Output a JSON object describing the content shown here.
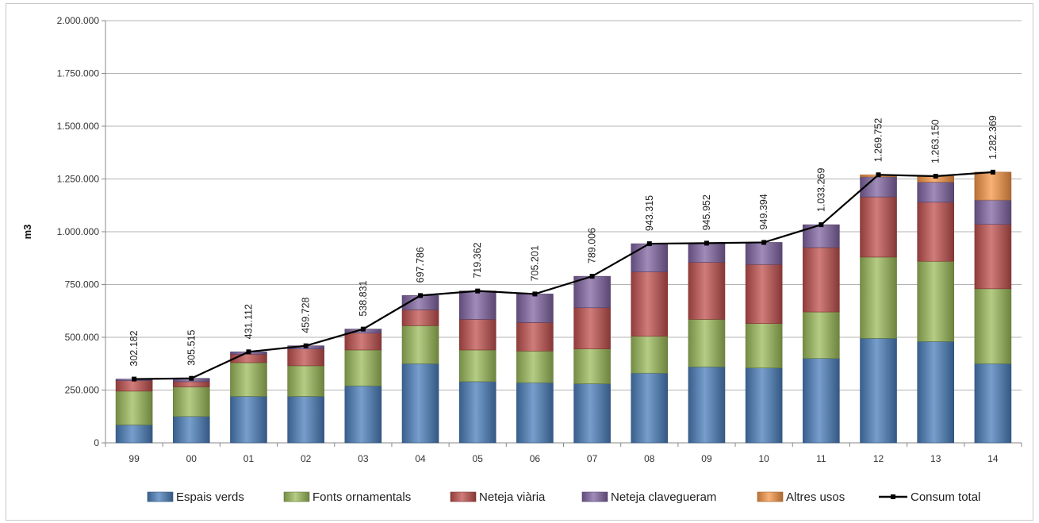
{
  "chart_data": {
    "type": "bar",
    "stacked": true,
    "title": "",
    "xlabel": "",
    "ylabel": "m3",
    "ylim": [
      0,
      2000000
    ],
    "ytick_values": [
      0,
      250000,
      500000,
      750000,
      1000000,
      1250000,
      1500000,
      1750000,
      2000000
    ],
    "ytick_labels": [
      "0",
      "250.000",
      "500.000",
      "750.000",
      "1.000.000",
      "1.250.000",
      "1.500.000",
      "1.750.000",
      "2.000.000"
    ],
    "grid": true,
    "legend_position": "bottom",
    "categories": [
      "99",
      "00",
      "01",
      "02",
      "03",
      "04",
      "05",
      "06",
      "07",
      "08",
      "09",
      "10",
      "11",
      "12",
      "13",
      "14"
    ],
    "series": [
      {
        "name": "Espais verds",
        "color": "#4a7ebb",
        "values": [
          85000,
          125000,
          220000,
          220000,
          270000,
          375000,
          290000,
          285000,
          280000,
          330000,
          360000,
          355000,
          400000,
          495000,
          480000,
          375000
        ]
      },
      {
        "name": "Fonts ornamentals",
        "color": "#9bbb59",
        "values": [
          160000,
          140000,
          160000,
          145000,
          170000,
          180000,
          150000,
          150000,
          165000,
          175000,
          225000,
          210000,
          220000,
          385000,
          380000,
          355000
        ]
      },
      {
        "name": "Neteja viària",
        "color": "#c0504d",
        "values": [
          50000,
          25000,
          40000,
          80000,
          80000,
          75000,
          145000,
          135000,
          195000,
          305000,
          270000,
          280000,
          305000,
          285000,
          280000,
          305000
        ]
      },
      {
        "name": "Neteja clavegueram",
        "color": "#8064a2",
        "values": [
          7182,
          15515,
          11112,
          14728,
          18831,
          67786,
          134362,
          135201,
          149006,
          133315,
          90952,
          104394,
          108269,
          95000,
          95000,
          115000
        ]
      },
      {
        "name": "Altres usos",
        "color": "#f79646",
        "values": [
          0,
          0,
          0,
          0,
          0,
          0,
          0,
          0,
          0,
          0,
          0,
          0,
          0,
          9752,
          28150,
          132369
        ]
      }
    ],
    "line": {
      "name": "Consum total",
      "color": "#000000",
      "values": [
        302182,
        305515,
        431112,
        459728,
        538831,
        697786,
        719362,
        705201,
        789006,
        943315,
        945952,
        949394,
        1033269,
        1269752,
        1263150,
        1282369
      ]
    },
    "data_labels": [
      "302.182",
      "305.515",
      "431.112",
      "459.728",
      "538.831",
      "697.786",
      "719.362",
      "705.201",
      "789.006",
      "943.315",
      "945.952",
      "949.394",
      "1.033.269",
      "1.269.752",
      "1.263.150",
      "1.282.369"
    ]
  }
}
